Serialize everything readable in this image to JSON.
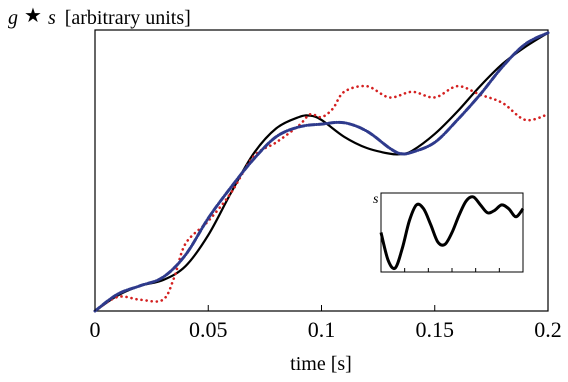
{
  "chart_data": {
    "type": "line",
    "ylabel_symbol_left": "g",
    "ylabel_star": "★",
    "ylabel_symbol_right": "s",
    "ylabel_units": "[arbitrary units]",
    "xlabel": "time [s]",
    "xlim": [
      0,
      0.2
    ],
    "ylim": [
      0,
      1
    ],
    "xticks": [
      0,
      0.05,
      0.1,
      0.15,
      0.2
    ],
    "xtick_labels": [
      "0",
      "0.05",
      "0.1",
      "0.15",
      "0.2"
    ],
    "grid": false,
    "series": [
      {
        "style": "solid",
        "color": "#000000",
        "x": [
          0,
          0.01,
          0.02,
          0.03,
          0.04,
          0.05,
          0.06,
          0.07,
          0.08,
          0.09,
          0.095,
          0.1,
          0.11,
          0.12,
          0.13,
          0.135,
          0.14,
          0.15,
          0.16,
          0.17,
          0.18,
          0.19,
          0.2
        ],
        "y": [
          0.0,
          0.055,
          0.09,
          0.11,
          0.16,
          0.27,
          0.42,
          0.56,
          0.65,
          0.69,
          0.695,
          0.68,
          0.62,
          0.58,
          0.56,
          0.558,
          0.57,
          0.63,
          0.71,
          0.8,
          0.88,
          0.94,
          0.99
        ]
      },
      {
        "style": "dashed-dotted",
        "color": "#2e3a8c",
        "x": [
          0,
          0.01,
          0.02,
          0.03,
          0.04,
          0.05,
          0.06,
          0.07,
          0.08,
          0.09,
          0.1,
          0.11,
          0.12,
          0.13,
          0.135,
          0.14,
          0.15,
          0.16,
          0.17,
          0.18,
          0.19,
          0.2
        ],
        "y": [
          0.0,
          0.06,
          0.09,
          0.12,
          0.2,
          0.33,
          0.44,
          0.54,
          0.62,
          0.655,
          0.665,
          0.67,
          0.64,
          0.58,
          0.56,
          0.565,
          0.6,
          0.68,
          0.77,
          0.87,
          0.95,
          0.99
        ]
      },
      {
        "style": "dotted",
        "color": "#d42020",
        "x": [
          0,
          0.01,
          0.02,
          0.03,
          0.035,
          0.04,
          0.05,
          0.06,
          0.07,
          0.08,
          0.09,
          0.095,
          0.1,
          0.105,
          0.11,
          0.12,
          0.13,
          0.14,
          0.15,
          0.16,
          0.17,
          0.18,
          0.19,
          0.2
        ],
        "y": [
          0.0,
          0.05,
          0.04,
          0.04,
          0.12,
          0.24,
          0.32,
          0.42,
          0.55,
          0.6,
          0.66,
          0.7,
          0.69,
          0.72,
          0.78,
          0.8,
          0.76,
          0.78,
          0.76,
          0.8,
          0.77,
          0.74,
          0.68,
          0.7
        ]
      }
    ],
    "inset": {
      "ylabel": "s",
      "type": "line",
      "x": [
        0,
        0.02,
        0.04,
        0.06,
        0.08,
        0.1,
        0.12,
        0.14,
        0.16,
        0.18,
        0.2,
        0.22,
        0.24,
        0.26,
        0.28,
        0.3,
        0.32,
        0.34,
        0.36,
        0.38,
        0.4
      ],
      "y": [
        0.5,
        0.15,
        0.05,
        0.3,
        0.65,
        0.85,
        0.8,
        0.6,
        0.38,
        0.35,
        0.5,
        0.72,
        0.9,
        0.95,
        0.85,
        0.75,
        0.78,
        0.85,
        0.8,
        0.7,
        0.8
      ],
      "xlim": [
        0,
        0.4
      ],
      "ylim": [
        0,
        1
      ],
      "xtick_count": 5
    }
  }
}
